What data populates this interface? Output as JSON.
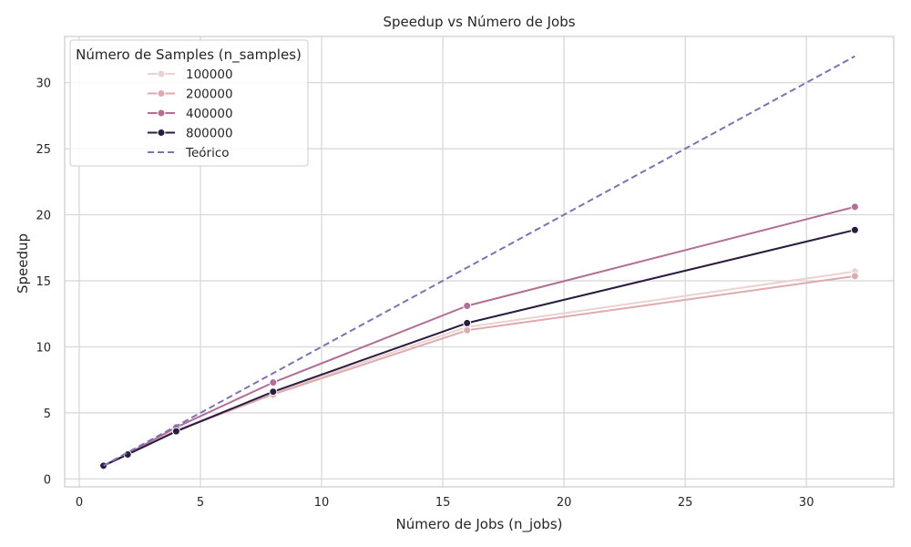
{
  "chart_data": {
    "type": "line",
    "title": "Speedup vs Número de Jobs",
    "xlabel": "Número de Jobs (n_jobs)",
    "ylabel": "Speedup",
    "xlim": [
      -0.6,
      33.6
    ],
    "ylim": [
      -0.6,
      33.5
    ],
    "xticks": [
      0,
      5,
      10,
      15,
      20,
      25,
      30
    ],
    "yticks": [
      0,
      5,
      10,
      15,
      20,
      25,
      30
    ],
    "grid": true,
    "legend": {
      "title": "Número de Samples (n_samples)",
      "placement": "top-left"
    },
    "series": [
      {
        "name": "100000",
        "color": "#e9d2cf",
        "marker": "circle",
        "dashed": false,
        "x": [
          1,
          2,
          4,
          8,
          16,
          32
        ],
        "y": [
          1.0,
          1.9,
          3.7,
          6.5,
          11.5,
          15.7
        ]
      },
      {
        "name": "200000",
        "color": "#ddaaae",
        "marker": "circle",
        "dashed": false,
        "x": [
          1,
          2,
          4,
          8,
          16,
          32
        ],
        "y": [
          1.0,
          1.85,
          3.65,
          6.4,
          11.25,
          15.35
        ]
      },
      {
        "name": "400000",
        "color": "#b06f93",
        "marker": "circle",
        "dashed": false,
        "x": [
          1,
          2,
          4,
          8,
          16,
          32
        ],
        "y": [
          1.0,
          1.9,
          3.9,
          7.3,
          13.1,
          20.6
        ]
      },
      {
        "name": "800000",
        "color": "#2b1b3f",
        "marker": "circle",
        "dashed": false,
        "x": [
          1,
          2,
          4,
          8,
          16,
          32
        ],
        "y": [
          1.0,
          1.85,
          3.6,
          6.6,
          11.8,
          18.85
        ]
      },
      {
        "name": "Teórico",
        "color": "#7c73b4",
        "marker": "none",
        "dashed": true,
        "x": [
          1,
          2,
          4,
          8,
          16,
          32
        ],
        "y": [
          1,
          2,
          4,
          8,
          16,
          32
        ]
      }
    ]
  }
}
